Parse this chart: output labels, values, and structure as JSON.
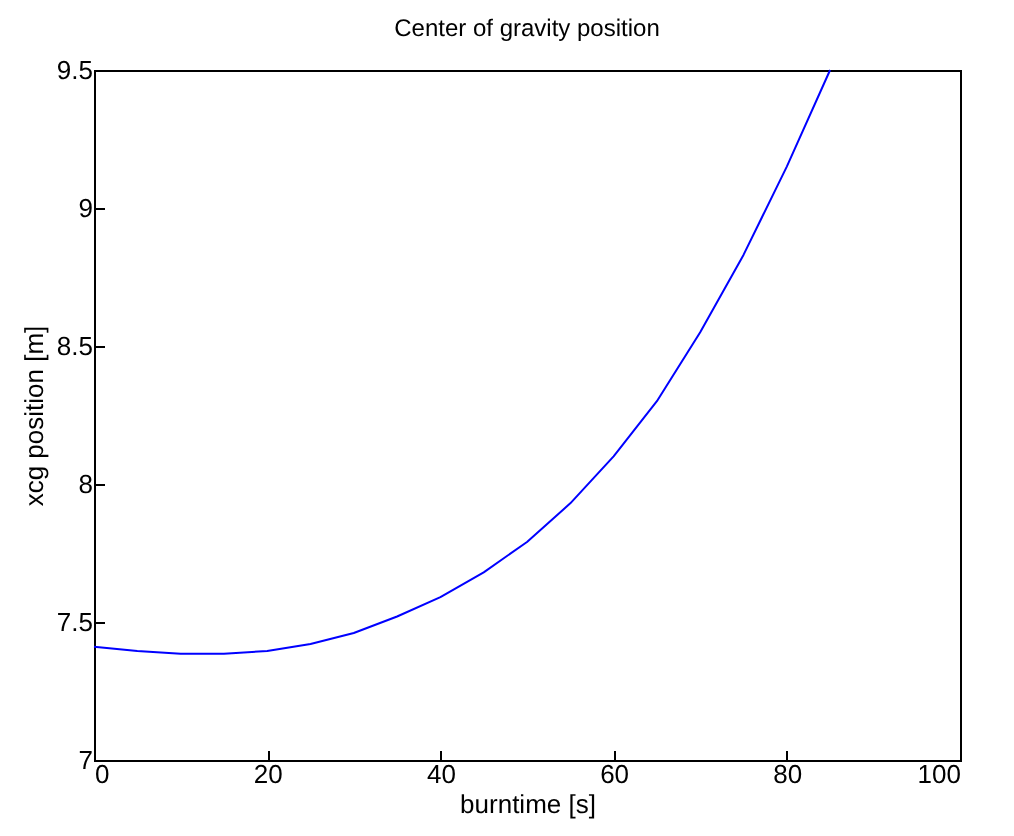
{
  "chart_data": {
    "type": "line",
    "title": "Center of gravity position",
    "xlabel": "burntime [s]",
    "ylabel": "xcg position [m]",
    "x": [
      0,
      5,
      10,
      15,
      20,
      25,
      30,
      35,
      40,
      45,
      50,
      55,
      60,
      65,
      70,
      75,
      80,
      85
    ],
    "series": [
      {
        "color": "#0000ff",
        "values": [
          7.41,
          7.395,
          7.385,
          7.385,
          7.395,
          7.42,
          7.46,
          7.52,
          7.59,
          7.68,
          7.79,
          7.93,
          8.1,
          8.3,
          8.55,
          8.83,
          9.15,
          9.5
        ]
      }
    ],
    "xlim": [
      0,
      100
    ],
    "xticks": [
      0,
      20,
      40,
      60,
      80,
      100
    ],
    "ylim": [
      7,
      9.5
    ],
    "yticks": [
      7,
      7.5,
      8,
      8.5,
      9,
      9.5
    ],
    "grid": false,
    "legend": false,
    "marker": "none",
    "line_style": "solid"
  }
}
